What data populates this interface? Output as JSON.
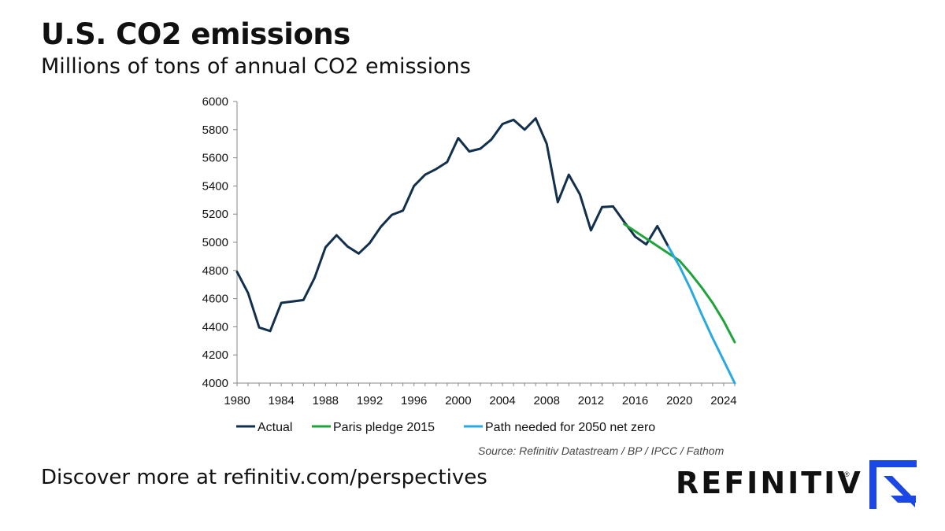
{
  "header": {
    "title": "U.S. CO2 emissions",
    "subtitle": "Millions of tons of annual CO2 emissions"
  },
  "source": "Source: Refinitiv Datastream / BP / IPCC / Fathom",
  "footer": {
    "cta": "Discover more at refinitiv.com/perspectives",
    "brand": "REFINITIV",
    "registered": "®"
  },
  "colors": {
    "actual": "#12304d",
    "paris": "#1fa33a",
    "netzero": "#29a9e1",
    "brand_blue": "#1a47e6"
  },
  "chart_data": {
    "type": "line",
    "title": "U.S. CO2 emissions",
    "subtitle": "Millions of tons of annual CO2 emissions",
    "xlabel": "",
    "ylabel": "",
    "xlim": [
      1980,
      2025
    ],
    "ylim": [
      4000,
      6000
    ],
    "x_ticks": [
      1980,
      1984,
      1988,
      1992,
      1996,
      2000,
      2004,
      2008,
      2012,
      2016,
      2020,
      2024
    ],
    "y_ticks": [
      4000,
      4200,
      4400,
      4600,
      4800,
      5000,
      5200,
      5400,
      5600,
      5800,
      6000
    ],
    "grid": false,
    "legend_position": "bottom",
    "series": [
      {
        "name": "Actual",
        "color": "#12304d",
        "x": [
          1980,
          1981,
          1982,
          1983,
          1984,
          1985,
          1986,
          1987,
          1988,
          1989,
          1990,
          1991,
          1992,
          1993,
          1994,
          1995,
          1996,
          1997,
          1998,
          1999,
          2000,
          2001,
          2002,
          2003,
          2004,
          2005,
          2006,
          2007,
          2008,
          2009,
          2010,
          2011,
          2012,
          2013,
          2014,
          2015,
          2016,
          2017,
          2018,
          2019
        ],
        "values": [
          4790,
          4640,
          4395,
          4370,
          4570,
          4580,
          4590,
          4745,
          4965,
          5050,
          4970,
          4920,
          4995,
          5110,
          5195,
          5225,
          5400,
          5480,
          5520,
          5570,
          5740,
          5645,
          5665,
          5730,
          5840,
          5870,
          5800,
          5880,
          5700,
          5285,
          5480,
          5340,
          5085,
          5250,
          5255,
          5145,
          5040,
          4985,
          5115,
          4970
        ]
      },
      {
        "name": "Paris pledge 2015",
        "color": "#1fa33a",
        "x": [
          2015,
          2020,
          2021,
          2022,
          2023,
          2024,
          2025
        ],
        "values": [
          5130,
          4870,
          4780,
          4680,
          4570,
          4440,
          4290
        ]
      },
      {
        "name": "Path needed for 2050 net zero",
        "color": "#29a9e1",
        "x": [
          2019,
          2020,
          2021,
          2022,
          2023,
          2024,
          2025
        ],
        "values": [
          4970,
          4830,
          4670,
          4490,
          4320,
          4160,
          4000
        ]
      }
    ]
  }
}
